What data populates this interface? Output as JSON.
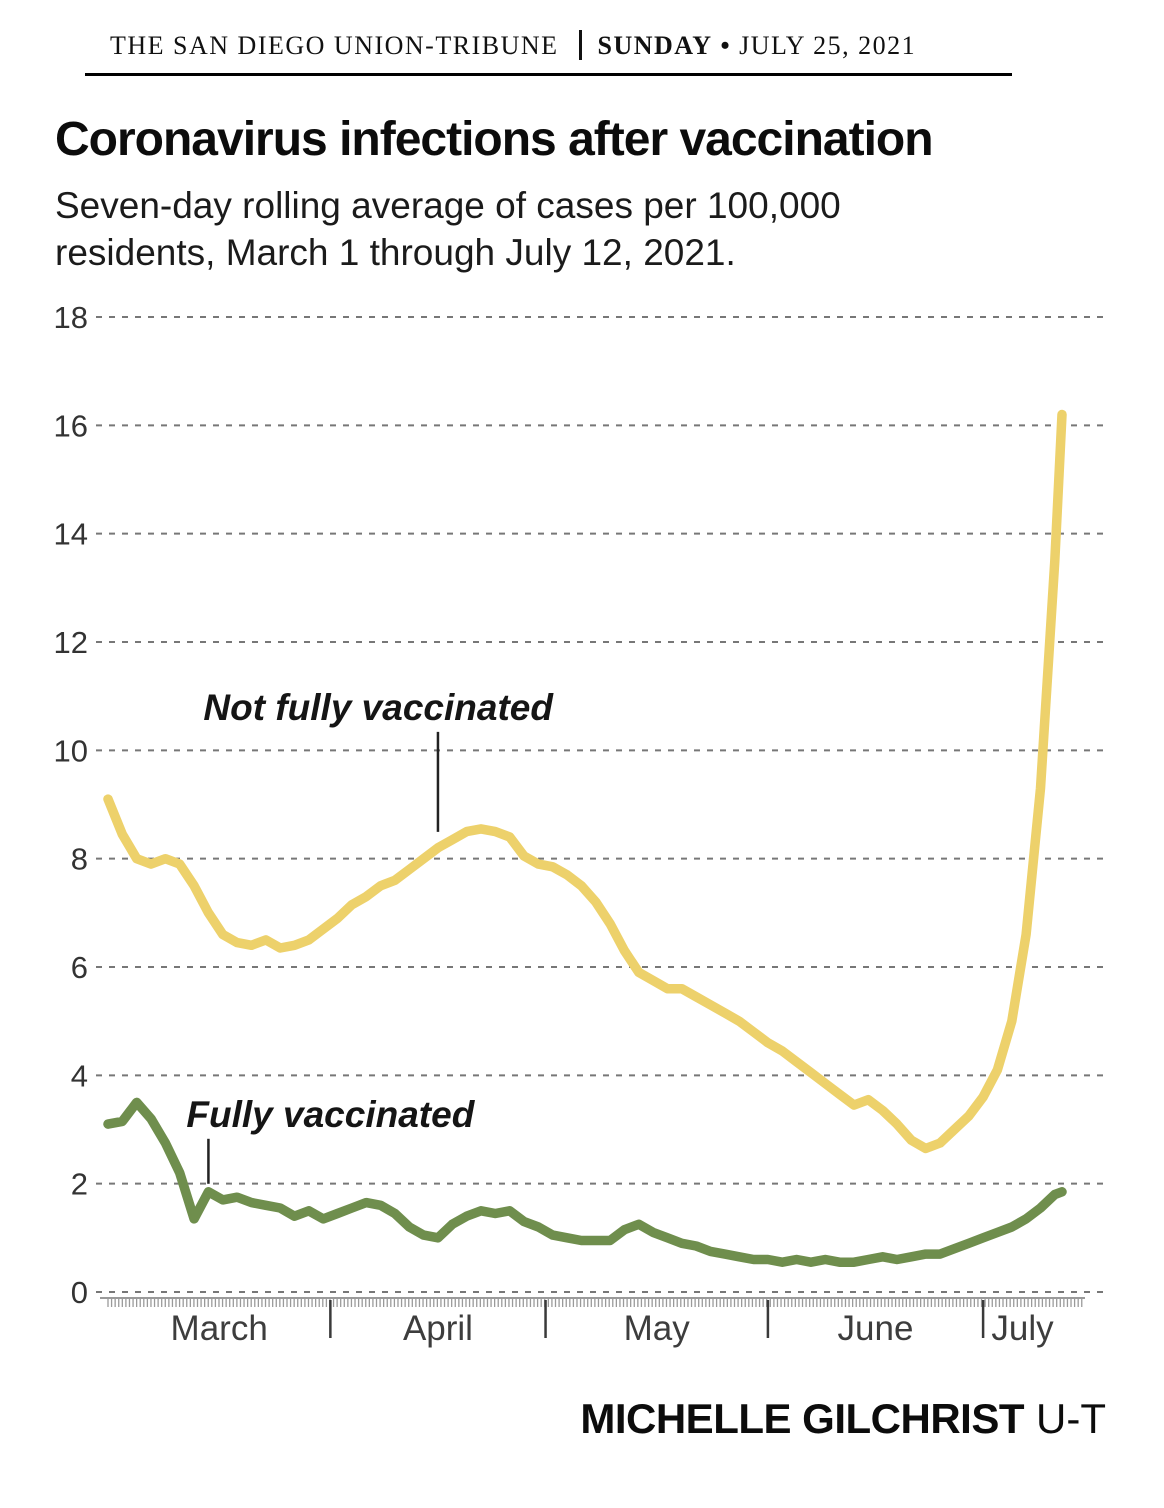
{
  "masthead": {
    "paper": "THE SAN DIEGO UNION-TRIBUNE",
    "day": "SUNDAY",
    "bullet": "•",
    "date": "JULY 25, 2021"
  },
  "headline": {
    "title": "Coronavirus infections after vaccination",
    "subtitle_line1": "Seven-day rolling average of cases per 100,000",
    "subtitle_line2": "residents, March 1 through July 12, 2021."
  },
  "credit": {
    "author": "MICHELLE GILCHRIST",
    "brand": "U-T"
  },
  "colors": {
    "not_fully_vaccinated_line": "#edd16b",
    "fully_vaccinated_line": "#6f8e4d",
    "gridline": "#777777",
    "axis_text": "#3d3d3d",
    "annotation_text": "#151515",
    "ruler": "#9a9a9a"
  },
  "chart_data": {
    "type": "line",
    "title": "Coronavirus infections after vaccination",
    "subtitle": "Seven-day rolling average of cases per 100,000 residents, March 1 through July 12, 2021.",
    "x_unit": "days since March 1, 2021",
    "x_range_days": [
      0,
      133
    ],
    "ylim": [
      0,
      18
    ],
    "y_ticks": [
      0,
      2,
      4,
      6,
      8,
      10,
      12,
      14,
      16,
      18
    ],
    "grid": "dashed horizontal gridlines",
    "legend_position": "inline annotations",
    "x_month_labels": [
      "March",
      "April",
      "May",
      "June",
      "July"
    ],
    "month_boundaries_days": [
      31,
      61,
      92,
      122
    ],
    "month_label_center_days": [
      15.5,
      46,
      76.5,
      107,
      127.5
    ],
    "annotations": [
      {
        "label": "Not fully vaccinated",
        "day": 46,
        "value": 8.2
      },
      {
        "label": "Fully vaccinated",
        "day": 14,
        "value": 1.85
      }
    ],
    "series": [
      {
        "name": "Not fully vaccinated",
        "color": "#edd16b",
        "points": [
          [
            0,
            9.1
          ],
          [
            2,
            8.45
          ],
          [
            4,
            8.0
          ],
          [
            6,
            7.9
          ],
          [
            8,
            8.0
          ],
          [
            10,
            7.9
          ],
          [
            12,
            7.5
          ],
          [
            14,
            7.0
          ],
          [
            16,
            6.6
          ],
          [
            18,
            6.45
          ],
          [
            20,
            6.4
          ],
          [
            22,
            6.5
          ],
          [
            24,
            6.35
          ],
          [
            26,
            6.4
          ],
          [
            28,
            6.5
          ],
          [
            30,
            6.7
          ],
          [
            32,
            6.9
          ],
          [
            34,
            7.15
          ],
          [
            36,
            7.3
          ],
          [
            38,
            7.5
          ],
          [
            40,
            7.6
          ],
          [
            42,
            7.8
          ],
          [
            44,
            8.0
          ],
          [
            46,
            8.2
          ],
          [
            48,
            8.35
          ],
          [
            50,
            8.5
          ],
          [
            52,
            8.55
          ],
          [
            54,
            8.5
          ],
          [
            56,
            8.4
          ],
          [
            58,
            8.05
          ],
          [
            60,
            7.9
          ],
          [
            62,
            7.85
          ],
          [
            64,
            7.7
          ],
          [
            66,
            7.5
          ],
          [
            68,
            7.2
          ],
          [
            70,
            6.8
          ],
          [
            72,
            6.3
          ],
          [
            74,
            5.9
          ],
          [
            76,
            5.75
          ],
          [
            78,
            5.6
          ],
          [
            80,
            5.6
          ],
          [
            82,
            5.45
          ],
          [
            84,
            5.3
          ],
          [
            86,
            5.15
          ],
          [
            88,
            5.0
          ],
          [
            90,
            4.8
          ],
          [
            92,
            4.6
          ],
          [
            94,
            4.45
          ],
          [
            96,
            4.25
          ],
          [
            98,
            4.05
          ],
          [
            100,
            3.85
          ],
          [
            102,
            3.65
          ],
          [
            104,
            3.45
          ],
          [
            106,
            3.55
          ],
          [
            108,
            3.35
          ],
          [
            110,
            3.1
          ],
          [
            112,
            2.8
          ],
          [
            114,
            2.65
          ],
          [
            116,
            2.75
          ],
          [
            118,
            3.0
          ],
          [
            120,
            3.25
          ],
          [
            122,
            3.6
          ],
          [
            124,
            4.1
          ],
          [
            126,
            5.0
          ],
          [
            128,
            6.6
          ],
          [
            130,
            9.3
          ],
          [
            132,
            13.5
          ],
          [
            133,
            16.2
          ]
        ]
      },
      {
        "name": "Fully vaccinated",
        "color": "#6f8e4d",
        "points": [
          [
            0,
            3.1
          ],
          [
            2,
            3.15
          ],
          [
            4,
            3.5
          ],
          [
            6,
            3.2
          ],
          [
            8,
            2.75
          ],
          [
            10,
            2.2
          ],
          [
            12,
            1.35
          ],
          [
            14,
            1.85
          ],
          [
            16,
            1.7
          ],
          [
            18,
            1.75
          ],
          [
            20,
            1.65
          ],
          [
            22,
            1.6
          ],
          [
            24,
            1.55
          ],
          [
            26,
            1.4
          ],
          [
            28,
            1.5
          ],
          [
            30,
            1.35
          ],
          [
            32,
            1.45
          ],
          [
            34,
            1.55
          ],
          [
            36,
            1.65
          ],
          [
            38,
            1.6
          ],
          [
            40,
            1.45
          ],
          [
            42,
            1.2
          ],
          [
            44,
            1.05
          ],
          [
            46,
            1.0
          ],
          [
            48,
            1.25
          ],
          [
            50,
            1.4
          ],
          [
            52,
            1.5
          ],
          [
            54,
            1.45
          ],
          [
            56,
            1.5
          ],
          [
            58,
            1.3
          ],
          [
            60,
            1.2
          ],
          [
            62,
            1.05
          ],
          [
            64,
            1.0
          ],
          [
            66,
            0.95
          ],
          [
            68,
            0.95
          ],
          [
            70,
            0.95
          ],
          [
            72,
            1.15
          ],
          [
            74,
            1.25
          ],
          [
            76,
            1.1
          ],
          [
            78,
            1.0
          ],
          [
            80,
            0.9
          ],
          [
            82,
            0.85
          ],
          [
            84,
            0.75
          ],
          [
            86,
            0.7
          ],
          [
            88,
            0.65
          ],
          [
            90,
            0.6
          ],
          [
            92,
            0.6
          ],
          [
            94,
            0.55
          ],
          [
            96,
            0.6
          ],
          [
            98,
            0.55
          ],
          [
            100,
            0.6
          ],
          [
            102,
            0.55
          ],
          [
            104,
            0.55
          ],
          [
            106,
            0.6
          ],
          [
            108,
            0.65
          ],
          [
            110,
            0.6
          ],
          [
            112,
            0.65
          ],
          [
            114,
            0.7
          ],
          [
            116,
            0.7
          ],
          [
            118,
            0.8
          ],
          [
            120,
            0.9
          ],
          [
            122,
            1.0
          ],
          [
            124,
            1.1
          ],
          [
            126,
            1.2
          ],
          [
            128,
            1.35
          ],
          [
            130,
            1.55
          ],
          [
            132,
            1.8
          ],
          [
            133,
            1.85
          ]
        ]
      }
    ]
  }
}
